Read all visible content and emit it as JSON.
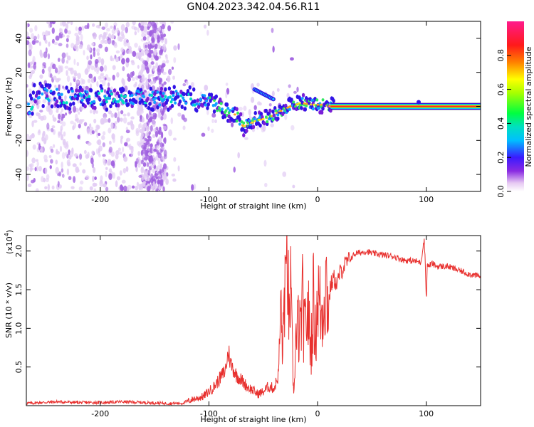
{
  "title": "GN04.2023.342.04.56.R11",
  "chart_data": [
    {
      "type": "heatmap",
      "xlabel": "Height of straight line (km)",
      "ylabel": "Frequency (Hz)",
      "xlim": [
        -268,
        150
      ],
      "ylim": [
        -50,
        50
      ],
      "xticks": [
        -200,
        -100,
        0,
        100
      ],
      "yticks": [
        -40,
        -20,
        0,
        20,
        40
      ],
      "colorbar": {
        "label": "Normalized spectral amplitude",
        "ticks": [
          "0.0",
          "0.2",
          "0.4",
          "0.6",
          "0.8"
        ],
        "tick_values": [
          0.0,
          0.2,
          0.4,
          0.6,
          0.8
        ],
        "range": [
          0,
          1
        ],
        "colormap": "rainbow (white-purple-blue-cyan-green-yellow-orange-red-pink)"
      },
      "ridge": [
        {
          "x": -262,
          "y": 7
        },
        {
          "x": -240,
          "y": 6
        },
        {
          "x": -220,
          "y": 5
        },
        {
          "x": -200,
          "y": 5
        },
        {
          "x": -180,
          "y": 5
        },
        {
          "x": -160,
          "y": 5
        },
        {
          "x": -140,
          "y": 5
        },
        {
          "x": -120,
          "y": 5
        },
        {
          "x": -105,
          "y": 4
        },
        {
          "x": -95,
          "y": 2
        },
        {
          "x": -85,
          "y": -3
        },
        {
          "x": -75,
          "y": -5
        },
        {
          "x": -68,
          "y": -12
        },
        {
          "x": -55,
          "y": -8
        },
        {
          "x": -45,
          "y": -7
        },
        {
          "x": -35,
          "y": -3
        },
        {
          "x": -25,
          "y": 0
        },
        {
          "x": -15,
          "y": 2
        },
        {
          "x": -5,
          "y": 1
        },
        {
          "x": 5,
          "y": 1
        },
        {
          "x": 12,
          "y": 0
        },
        {
          "x": 150,
          "y": 0
        }
      ],
      "side_feature": {
        "x": [
          -58,
          -40
        ],
        "y": [
          10,
          4
        ]
      }
    },
    {
      "type": "line",
      "xlabel": "Height of straight line (km)",
      "ylabel": "SNR (10 * v/v)",
      "multiplier_label": "(x10",
      "multiplier_exp": "4",
      "xlim": [
        -268,
        150
      ],
      "ylim": [
        0,
        2.2
      ],
      "xticks": [
        -200,
        -100,
        0,
        100
      ],
      "yticks": [
        0.5,
        1.0,
        1.5,
        2.0
      ],
      "ytick_labels": [
        "0.5",
        "1.0",
        "1.5",
        "2.0"
      ],
      "color": "#e8302e",
      "series": [
        {
          "x": [
            -268,
            -240,
            -220,
            -200,
            -180,
            -160,
            -140,
            -125,
            -115,
            -105,
            -95,
            -90,
            -85,
            -82,
            -80,
            -75,
            -70,
            -65,
            -60,
            -55,
            -50,
            -45,
            -40,
            -36,
            -34,
            -32,
            -30,
            -29,
            -28,
            -27,
            -26,
            -25,
            -24,
            -23,
            -22,
            -21,
            -20,
            -19,
            -18,
            -17,
            -16,
            -15,
            -14,
            -12,
            -10,
            -8,
            -6,
            -4,
            -2,
            0,
            2,
            4,
            6,
            8,
            10,
            12,
            15,
            18,
            20,
            25,
            30,
            35,
            40,
            45,
            50,
            60,
            70,
            80,
            90,
            95,
            98,
            99,
            100,
            101,
            102,
            105,
            110,
            120,
            130,
            140,
            150
          ],
          "y": [
            0.03,
            0.05,
            0.04,
            0.04,
            0.05,
            0.04,
            0.03,
            0.03,
            0.08,
            0.12,
            0.25,
            0.35,
            0.45,
            0.7,
            0.55,
            0.4,
            0.33,
            0.25,
            0.2,
            0.15,
            0.18,
            0.25,
            0.22,
            0.4,
            1.3,
            0.7,
            1.8,
            1.2,
            2.2,
            1.5,
            0.9,
            1.6,
            1.0,
            0.6,
            0.1,
            0.55,
            0.9,
            0.7,
            1.2,
            0.8,
            1.0,
            1.1,
            1.35,
            0.9,
            1.2,
            1.1,
            0.7,
            1.4,
            0.9,
            1.45,
            1.3,
            1.15,
            1.5,
            1.6,
            1.3,
            1.55,
            1.65,
            1.55,
            1.7,
            1.82,
            1.9,
            1.97,
            1.98,
            2.0,
            1.97,
            1.95,
            1.93,
            1.88,
            1.87,
            1.85,
            2.15,
            1.9,
            1.35,
            1.85,
            1.8,
            1.84,
            1.8,
            1.8,
            1.75,
            1.7,
            1.67
          ]
        }
      ]
    }
  ]
}
